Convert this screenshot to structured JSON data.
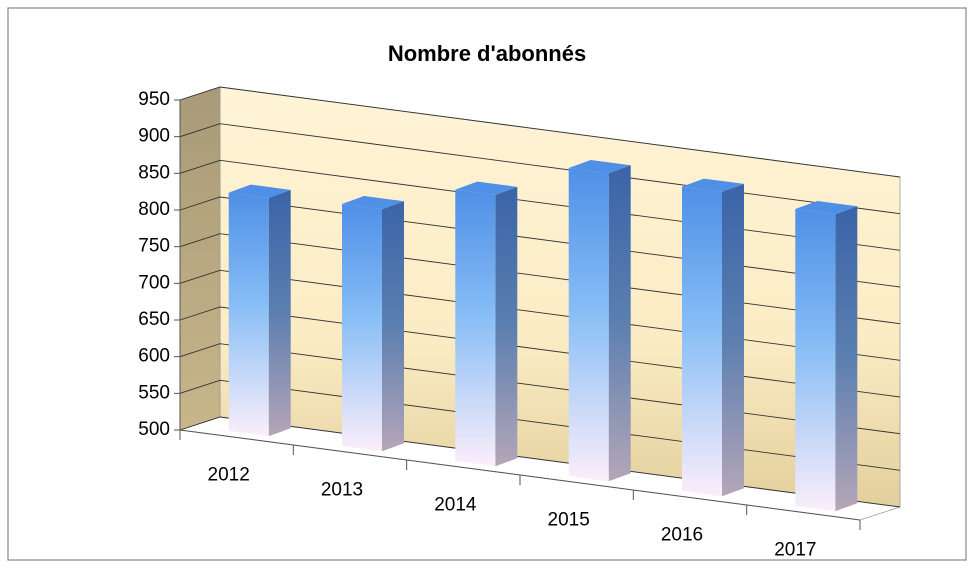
{
  "chart_data": {
    "type": "bar3d",
    "title": "Nombre d'abonnés",
    "categories": [
      "2012",
      "2013",
      "2014",
      "2015",
      "2016",
      "2017"
    ],
    "values": [
      825,
      830,
      870,
      920,
      915,
      905
    ],
    "color": "#4f8fe6",
    "ylim": [
      500,
      950
    ],
    "yticks": [
      500,
      550,
      600,
      650,
      700,
      750,
      800,
      850,
      900,
      950
    ],
    "grid": true
  }
}
